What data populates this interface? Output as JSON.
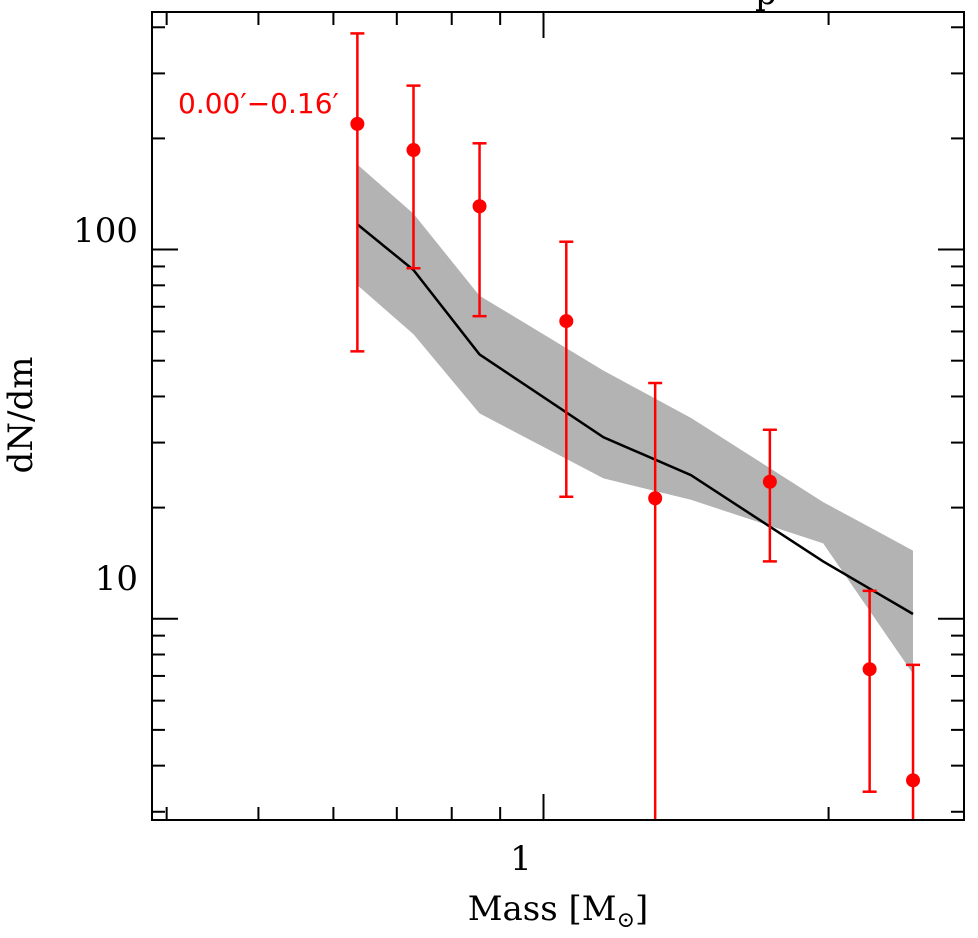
{
  "chart_data": {
    "type": "line",
    "xlabel": "Mass [M",
    "xlabel_symbol": "⊙",
    "ylabel": "dN/dm",
    "xscale": "log",
    "yscale": "log",
    "xlim": [
      0.386,
      2.78
    ],
    "ylim": [
      2.85,
      440
    ],
    "x_ticks": [
      {
        "value": 1,
        "label": "1"
      }
    ],
    "y_ticks": [
      {
        "value": 10,
        "label": "10"
      },
      {
        "value": 100,
        "label": "100"
      }
    ],
    "annotation": {
      "text": "0.00′−0.16′",
      "color": "#ff0000",
      "placement": "top-left"
    },
    "series": [
      {
        "kind": "band",
        "color": "#b3b3b3",
        "x": [
          0.636,
          0.729,
          0.856,
          1.157,
          1.431,
          1.974,
          2.456
        ],
        "lower": [
          80,
          59,
          36,
          24,
          21,
          16,
          7.1
        ],
        "upper": [
          170,
          125,
          75,
          47,
          35,
          20.7,
          15.3
        ]
      },
      {
        "kind": "line",
        "color": "#000000",
        "x": [
          0.636,
          0.729,
          0.856,
          1.157,
          1.431,
          1.974,
          2.456
        ],
        "y": [
          117,
          88,
          52,
          31,
          24.5,
          14.3,
          10.3
        ]
      },
      {
        "kind": "points_with_errorbars",
        "color": "#ff0000",
        "x": [
          0.636,
          0.729,
          0.856,
          1.057,
          1.312,
          1.734,
          2.21,
          2.456
        ],
        "y": [
          219,
          186,
          131,
          64,
          21.2,
          23.5,
          7.3,
          3.65
        ],
        "yerr_low": [
          53,
          89,
          66,
          21.4,
          2.85,
          14.3,
          3.4,
          2.85
        ],
        "yerr_high": [
          385,
          278,
          194,
          105,
          43.5,
          32.5,
          11.9,
          7.5
        ]
      }
    ],
    "title_fragment": "p"
  }
}
